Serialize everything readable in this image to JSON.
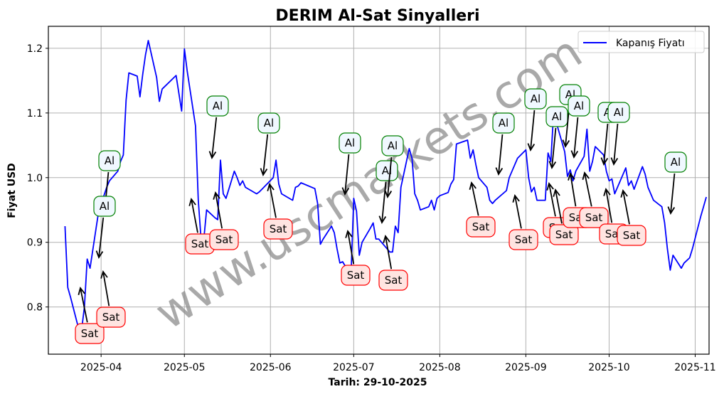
{
  "chart_data": {
    "type": "line",
    "title": "DERIM Al-Sat Sinyalleri",
    "xlabel": "Tarih: 29-10-2025",
    "ylabel": "Fiyat USD",
    "ylim": [
      0.727,
      1.234
    ],
    "xlim": [
      "2025-03-13",
      "2025-11-06"
    ],
    "grid": true,
    "legend_position": "upper right",
    "legend": [
      "Kapanış Fiyatı"
    ],
    "x_tick_labels": [
      "2025-04",
      "2025-05",
      "2025-06",
      "2025-07",
      "2025-08",
      "2025-09",
      "2025-10",
      "2025-11"
    ],
    "y_tick_labels": [
      "0.8",
      "0.9",
      "1.0",
      "1.1",
      "1.2"
    ],
    "watermark": "www.uscmarkets.com",
    "series": [
      {
        "name": "Kapanış Fiyatı",
        "color": "#0000ff",
        "points": [
          [
            "2025-03-19",
            0.925
          ],
          [
            "2025-03-20",
            0.83
          ],
          [
            "2025-03-21",
            0.815
          ],
          [
            "2025-03-24",
            0.765
          ],
          [
            "2025-03-25",
            0.765
          ],
          [
            "2025-03-26",
            0.8
          ],
          [
            "2025-03-27",
            0.874
          ],
          [
            "2025-03-28",
            0.86
          ],
          [
            "2025-03-31",
            0.945
          ],
          [
            "2025-04-01",
            0.955
          ],
          [
            "2025-04-02",
            0.972
          ],
          [
            "2025-04-03",
            0.985
          ],
          [
            "2025-04-04",
            0.995
          ],
          [
            "2025-04-07",
            1.01
          ],
          [
            "2025-04-08",
            1.025
          ],
          [
            "2025-04-09",
            1.035
          ],
          [
            "2025-04-10",
            1.12
          ],
          [
            "2025-04-11",
            1.162
          ],
          [
            "2025-04-14",
            1.157
          ],
          [
            "2025-04-15",
            1.125
          ],
          [
            "2025-04-16",
            1.16
          ],
          [
            "2025-04-17",
            1.19
          ],
          [
            "2025-04-18",
            1.212
          ],
          [
            "2025-04-21",
            1.155
          ],
          [
            "2025-04-22",
            1.118
          ],
          [
            "2025-04-23",
            1.137
          ],
          [
            "2025-04-28",
            1.158
          ],
          [
            "2025-04-30",
            1.103
          ],
          [
            "2025-05-01",
            1.199
          ],
          [
            "2025-05-02",
            1.165
          ],
          [
            "2025-05-05",
            1.08
          ],
          [
            "2025-05-06",
            0.965
          ],
          [
            "2025-05-07",
            0.905
          ],
          [
            "2025-05-08",
            0.905
          ],
          [
            "2025-05-09",
            0.95
          ],
          [
            "2025-05-12",
            0.938
          ],
          [
            "2025-05-13",
            0.935
          ],
          [
            "2025-05-14",
            1.027
          ],
          [
            "2025-05-15",
            0.975
          ],
          [
            "2025-05-16",
            0.968
          ],
          [
            "2025-05-19",
            1.01
          ],
          [
            "2025-05-20",
            1.0
          ],
          [
            "2025-05-21",
            0.988
          ],
          [
            "2025-05-22",
            0.995
          ],
          [
            "2025-05-23",
            0.985
          ],
          [
            "2025-05-27",
            0.975
          ],
          [
            "2025-05-28",
            0.978
          ],
          [
            "2025-06-02",
            1.0
          ],
          [
            "2025-06-03",
            1.027
          ],
          [
            "2025-06-04",
            0.99
          ],
          [
            "2025-06-05",
            0.975
          ],
          [
            "2025-06-09",
            0.965
          ],
          [
            "2025-06-10",
            0.985
          ],
          [
            "2025-06-11",
            0.987
          ],
          [
            "2025-06-12",
            0.992
          ],
          [
            "2025-06-17",
            0.983
          ],
          [
            "2025-06-18",
            0.96
          ],
          [
            "2025-06-19",
            0.897
          ],
          [
            "2025-06-20",
            0.905
          ],
          [
            "2025-06-23",
            0.925
          ],
          [
            "2025-06-24",
            0.915
          ],
          [
            "2025-06-25",
            0.89
          ],
          [
            "2025-06-26",
            0.868
          ],
          [
            "2025-06-27",
            0.87
          ],
          [
            "2025-06-30",
            0.848
          ],
          [
            "2025-07-01",
            0.968
          ],
          [
            "2025-07-02",
            0.948
          ],
          [
            "2025-07-03",
            0.88
          ],
          [
            "2025-07-04",
            0.9
          ],
          [
            "2025-07-07",
            0.922
          ],
          [
            "2025-07-08",
            0.93
          ],
          [
            "2025-07-09",
            0.905
          ],
          [
            "2025-07-10",
            0.905
          ],
          [
            "2025-07-14",
            0.885
          ],
          [
            "2025-07-15",
            0.885
          ],
          [
            "2025-07-16",
            0.925
          ],
          [
            "2025-07-17",
            0.915
          ],
          [
            "2025-07-18",
            0.985
          ],
          [
            "2025-07-21",
            1.045
          ],
          [
            "2025-07-22",
            1.03
          ],
          [
            "2025-07-23",
            0.975
          ],
          [
            "2025-07-24",
            0.965
          ],
          [
            "2025-07-25",
            0.95
          ],
          [
            "2025-07-28",
            0.955
          ],
          [
            "2025-07-29",
            0.965
          ],
          [
            "2025-07-30",
            0.95
          ],
          [
            "2025-07-31",
            0.968
          ],
          [
            "2025-08-01",
            0.972
          ],
          [
            "2025-08-04",
            0.977
          ],
          [
            "2025-08-05",
            0.99
          ],
          [
            "2025-08-06",
            0.997
          ],
          [
            "2025-08-07",
            1.052
          ],
          [
            "2025-08-11",
            1.058
          ],
          [
            "2025-08-12",
            1.03
          ],
          [
            "2025-08-13",
            1.043
          ],
          [
            "2025-08-14",
            1.02
          ],
          [
            "2025-08-15",
            1.0
          ],
          [
            "2025-08-18",
            0.985
          ],
          [
            "2025-08-19",
            0.965
          ],
          [
            "2025-08-20",
            0.96
          ],
          [
            "2025-08-21",
            0.965
          ],
          [
            "2025-08-25",
            0.98
          ],
          [
            "2025-08-26",
            1.0
          ],
          [
            "2025-08-27",
            1.01
          ],
          [
            "2025-08-29",
            1.03
          ],
          [
            "2025-09-01",
            1.043
          ],
          [
            "2025-09-02",
            1.0
          ],
          [
            "2025-09-03",
            0.978
          ],
          [
            "2025-09-04",
            0.985
          ],
          [
            "2025-09-05",
            0.965
          ],
          [
            "2025-09-08",
            0.965
          ],
          [
            "2025-09-09",
            1.038
          ],
          [
            "2025-09-10",
            1.025
          ],
          [
            "2025-09-11",
            1.1
          ],
          [
            "2025-09-12",
            1.085
          ],
          [
            "2025-09-15",
            1.04
          ],
          [
            "2025-09-16",
            1.002
          ],
          [
            "2025-09-17",
            1.012
          ],
          [
            "2025-09-18",
            0.995
          ],
          [
            "2025-09-19",
            1.01
          ],
          [
            "2025-09-22",
            1.033
          ],
          [
            "2025-09-23",
            1.075
          ],
          [
            "2025-09-24",
            1.01
          ],
          [
            "2025-09-25",
            1.025
          ],
          [
            "2025-09-26",
            1.048
          ],
          [
            "2025-09-29",
            1.035
          ],
          [
            "2025-09-30",
            1.01
          ],
          [
            "2025-10-01",
            0.995
          ],
          [
            "2025-10-02",
            0.998
          ],
          [
            "2025-10-03",
            0.975
          ],
          [
            "2025-10-06",
            1.005
          ],
          [
            "2025-10-07",
            1.015
          ],
          [
            "2025-10-08",
            0.988
          ],
          [
            "2025-10-09",
            0.995
          ],
          [
            "2025-10-10",
            0.982
          ],
          [
            "2025-10-13",
            1.017
          ],
          [
            "2025-10-14",
            1.005
          ],
          [
            "2025-10-15",
            0.985
          ],
          [
            "2025-10-16",
            0.975
          ],
          [
            "2025-10-17",
            0.965
          ],
          [
            "2025-10-20",
            0.955
          ],
          [
            "2025-10-21",
            0.93
          ],
          [
            "2025-10-22",
            0.89
          ],
          [
            "2025-10-23",
            0.857
          ],
          [
            "2025-10-24",
            0.88
          ],
          [
            "2025-10-27",
            0.86
          ],
          [
            "2025-10-28",
            0.868
          ],
          [
            "2025-10-29",
            0.872
          ],
          [
            "2025-10-30",
            0.876
          ],
          [
            "2025-10-31",
            0.89
          ],
          [
            "2025-11-03",
            0.94
          ],
          [
            "2025-11-04",
            0.955
          ],
          [
            "2025-11-05",
            0.97
          ]
        ]
      }
    ],
    "annotations": [
      {
        "label": "Sat",
        "type": "sell",
        "box": [
          126,
          469
        ],
        "target": [
          113,
          405
        ]
      },
      {
        "label": "Sat",
        "type": "sell",
        "box": [
          156,
          446
        ],
        "target": [
          145,
          382
        ]
      },
      {
        "label": "Al",
        "type": "buy",
        "box": [
          154,
          226
        ],
        "target": [
          147,
          298
        ]
      },
      {
        "label": "Al",
        "type": "buy",
        "box": [
          147,
          290
        ],
        "target": [
          139,
          362
        ]
      },
      {
        "label": "Sat",
        "type": "sell",
        "box": [
          281,
          343
        ],
        "target": [
          269,
          280
        ]
      },
      {
        "label": "Al",
        "type": "buy",
        "box": [
          306,
          149
        ],
        "target": [
          298,
          222
        ]
      },
      {
        "label": "Sat",
        "type": "sell",
        "box": [
          315,
          337
        ],
        "target": [
          303,
          271
        ]
      },
      {
        "label": "Al",
        "type": "buy",
        "box": [
          378,
          173
        ],
        "target": [
          370,
          246
        ]
      },
      {
        "label": "Sat",
        "type": "sell",
        "box": [
          391,
          322
        ],
        "target": [
          379,
          259
        ]
      },
      {
        "label": "Al",
        "type": "buy",
        "box": [
          492,
          201
        ],
        "target": [
          485,
          273
        ]
      },
      {
        "label": "Sat",
        "type": "sell",
        "box": [
          500,
          387
        ],
        "target": [
          489,
          325
        ]
      },
      {
        "label": "Al",
        "type": "buy",
        "box": [
          544,
          240
        ],
        "target": [
          537,
          313
        ]
      },
      {
        "label": "Al",
        "type": "buy",
        "box": [
          552,
          205
        ],
        "target": [
          545,
          277
        ]
      },
      {
        "label": "Sat",
        "type": "sell",
        "box": [
          553,
          394
        ],
        "target": [
          542,
          332
        ]
      },
      {
        "label": "Sat",
        "type": "sell",
        "box": [
          676,
          319
        ],
        "target": [
          663,
          257
        ]
      },
      {
        "label": "Al",
        "type": "buy",
        "box": [
          708,
          173
        ],
        "target": [
          701,
          245
        ]
      },
      {
        "label": "Sat",
        "type": "sell",
        "box": [
          736,
          337
        ],
        "target": [
          724,
          275
        ]
      },
      {
        "label": "Al",
        "type": "buy",
        "box": [
          753,
          139
        ],
        "target": [
          746,
          211
        ]
      },
      {
        "label": "Al",
        "type": "buy",
        "box": [
          783,
          164
        ],
        "target": [
          776,
          236
        ]
      },
      {
        "label": "Sat",
        "type": "sell",
        "box": [
          784,
          320
        ],
        "target": [
          772,
          258
        ]
      },
      {
        "label": "Sat",
        "type": "sell",
        "box": [
          793,
          330
        ],
        "target": [
          781,
          267
        ]
      },
      {
        "label": "Al",
        "type": "buy",
        "box": [
          802,
          133
        ],
        "target": [
          795,
          206
        ]
      },
      {
        "label": "Al",
        "type": "buy",
        "box": [
          814,
          149
        ],
        "target": [
          807,
          221
        ]
      },
      {
        "label": "Sat",
        "type": "sell",
        "box": [
          812,
          306
        ],
        "target": [
          802,
          244
        ]
      },
      {
        "label": "Sat",
        "type": "sell",
        "box": [
          835,
          306
        ],
        "target": [
          822,
          243
        ]
      },
      {
        "label": "Al",
        "type": "buy",
        "box": [
          856,
          158
        ],
        "target": [
          849,
          231
        ]
      },
      {
        "label": "Al",
        "type": "buy",
        "box": [
          870,
          158
        ],
        "target": [
          863,
          231
        ]
      },
      {
        "label": "Sat",
        "type": "sell",
        "box": [
          863,
          329
        ],
        "target": [
          852,
          266
        ]
      },
      {
        "label": "Sat",
        "type": "sell",
        "box": [
          888,
          331
        ],
        "target": [
          876,
          268
        ]
      },
      {
        "label": "Al",
        "type": "buy",
        "box": [
          950,
          228
        ],
        "target": [
          943,
          300
        ]
      }
    ]
  },
  "colors": {
    "line": "#0000ff",
    "buy_border": "#008000",
    "buy_fill": "#f0f8ff",
    "sell_border": "#ff0000",
    "sell_fill": "#ffe4e1",
    "grid": "#b0b0b0"
  }
}
